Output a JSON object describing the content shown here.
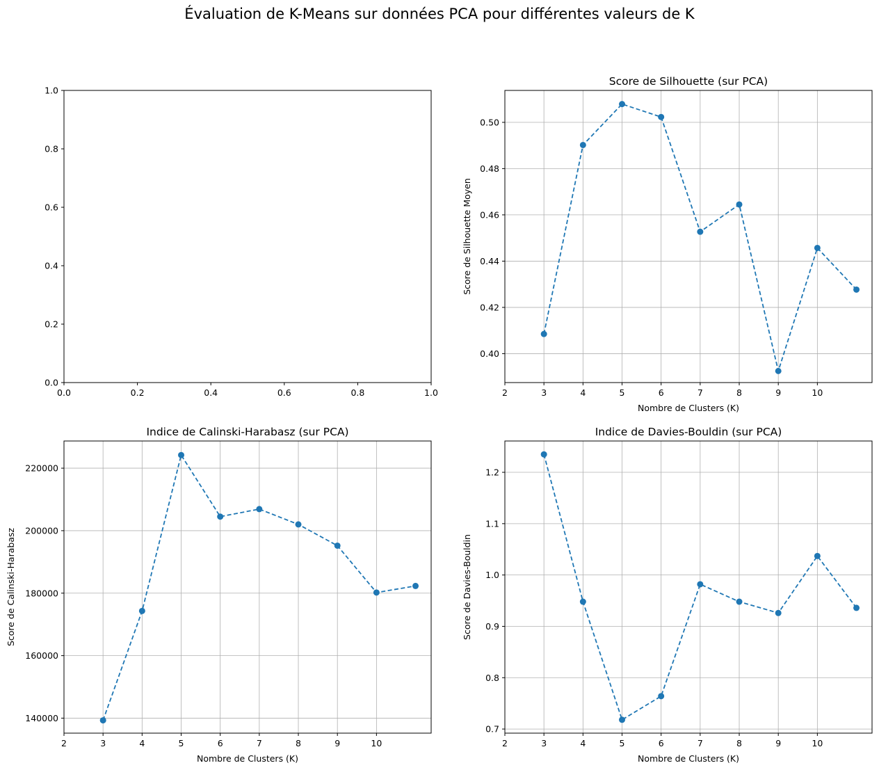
{
  "suptitle": "Évaluation de K-Means sur données PCA pour différentes valeurs de K",
  "colors": {
    "series": "#1f77b4",
    "grid": "#b0b0b0",
    "axis": "#000000"
  },
  "chart_data": [
    {
      "type": "empty",
      "title": "",
      "xlabel": "",
      "ylabel": "",
      "xlim": [
        0.0,
        1.0
      ],
      "ylim": [
        0.0,
        1.0
      ],
      "xticks": [
        "0.0",
        "0.2",
        "0.4",
        "0.6",
        "0.8",
        "1.0"
      ],
      "yticks": [
        "0.0",
        "0.2",
        "0.4",
        "0.6",
        "0.8",
        "1.0"
      ],
      "grid": false
    },
    {
      "type": "line",
      "title": "Score de Silhouette (sur PCA)",
      "xlabel": "Nombre de Clusters (K)",
      "ylabel": "Score de Silhouette Moyen",
      "x": [
        3,
        4,
        5,
        6,
        7,
        8,
        9,
        10,
        11
      ],
      "y": [
        0.4085,
        0.4902,
        0.5079,
        0.5023,
        0.4527,
        0.4645,
        0.3925,
        0.4457,
        0.4277
      ],
      "xlim": [
        2,
        11.4
      ],
      "ylim": [
        0.3875,
        0.5138
      ],
      "xticks": [
        2,
        3,
        4,
        5,
        6,
        7,
        8,
        9,
        10
      ],
      "yticks": [
        "0.40",
        "0.42",
        "0.44",
        "0.46",
        "0.48",
        "0.50"
      ],
      "grid": true,
      "line_style": "dashed",
      "marker": "circle"
    },
    {
      "type": "line",
      "title": "Indice de Calinski-Harabasz (sur PCA)",
      "xlabel": "Nombre de Clusters (K)",
      "ylabel": "Score de Calinski-Harabasz",
      "x": [
        3,
        4,
        5,
        6,
        7,
        8,
        9,
        10,
        11
      ],
      "y": [
        139300,
        174300,
        224200,
        204500,
        206900,
        202000,
        195200,
        180200,
        182300
      ],
      "xlim": [
        2,
        11.4
      ],
      "ylim": [
        135200,
        228700
      ],
      "xticks": [
        2,
        3,
        4,
        5,
        6,
        7,
        8,
        9,
        10
      ],
      "yticks": [
        "140000",
        "160000",
        "180000",
        "200000",
        "220000"
      ],
      "grid": true,
      "line_style": "dashed",
      "marker": "circle"
    },
    {
      "type": "line",
      "title": "Indice de Davies-Bouldin (sur PCA)",
      "xlabel": "Nombre de Clusters (K)",
      "ylabel": "Score de Davies-Bouldin",
      "x": [
        3,
        4,
        5,
        6,
        7,
        8,
        9,
        10,
        11
      ],
      "y": [
        1.235,
        0.948,
        0.718,
        0.764,
        0.982,
        0.948,
        0.926,
        1.037,
        0.936
      ],
      "xlim": [
        2,
        11.4
      ],
      "ylim": [
        0.692,
        1.261
      ],
      "xticks": [
        2,
        3,
        4,
        5,
        6,
        7,
        8,
        9,
        10
      ],
      "yticks": [
        "0.7",
        "0.8",
        "0.9",
        "1.0",
        "1.1",
        "1.2"
      ],
      "grid": true,
      "line_style": "dashed",
      "marker": "circle"
    }
  ]
}
